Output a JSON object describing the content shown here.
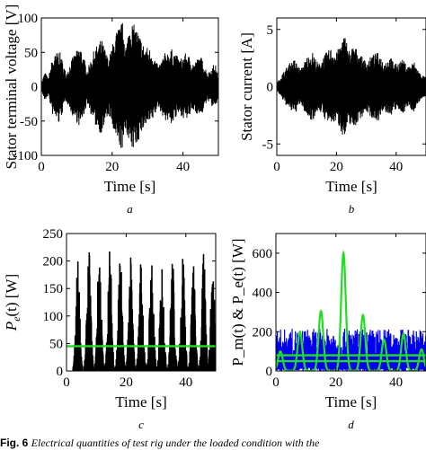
{
  "figure": {
    "caption_label": "Fig. 6",
    "caption_text": "Electrical quantities of test rig under the loaded condition with the"
  },
  "chart_data": [
    {
      "id": "a",
      "type": "line",
      "panel_label": "a",
      "xlabel": "Time [s]",
      "ylabel": "Stator terminal voltage [V]",
      "xlim": [
        0,
        50
      ],
      "ylim": [
        -100,
        100
      ],
      "xticks": [
        0,
        20,
        40
      ],
      "yticks": [
        -100,
        -50,
        0,
        50,
        100
      ],
      "series": [
        {
          "color": "#000000",
          "envelope_time": [
            0,
            1,
            2,
            3,
            5,
            7,
            9,
            11,
            13,
            15,
            17,
            19,
            21,
            23,
            24,
            25,
            27,
            29,
            31,
            33,
            35,
            37,
            39,
            41,
            43,
            45,
            47,
            49,
            50
          ],
          "envelope_amplitude": [
            5,
            22,
            12,
            40,
            55,
            20,
            45,
            60,
            25,
            55,
            70,
            40,
            80,
            95,
            60,
            98,
            85,
            60,
            55,
            30,
            50,
            55,
            40,
            50,
            35,
            45,
            20,
            35,
            15
          ]
        }
      ]
    },
    {
      "id": "b",
      "type": "line",
      "panel_label": "b",
      "xlabel": "Time [s]",
      "ylabel": "Stator current [A]",
      "xlim": [
        0,
        50
      ],
      "ylim": [
        -6,
        6
      ],
      "xticks": [
        0,
        20,
        40
      ],
      "yticks": [
        -5,
        0,
        5
      ],
      "series": [
        {
          "color": "#000000",
          "envelope_time": [
            0,
            2,
            4,
            6,
            8,
            10,
            12,
            14,
            16,
            18,
            20,
            22,
            23,
            24,
            26,
            28,
            30,
            32,
            34,
            36,
            38,
            40,
            42,
            44,
            46,
            48,
            50
          ],
          "envelope_amplitude": [
            0.3,
            1.2,
            2.0,
            2.4,
            1.5,
            2.6,
            3.0,
            2.0,
            2.8,
            3.4,
            3.0,
            4.2,
            4.6,
            3.2,
            3.6,
            2.8,
            2.2,
            2.8,
            3.0,
            2.2,
            2.6,
            2.0,
            2.4,
            1.8,
            2.2,
            1.2,
            0.8
          ]
        }
      ]
    },
    {
      "id": "c",
      "type": "line",
      "panel_label": "c",
      "xlabel": "Time [s]",
      "ylabel": "P_e(t) [W]",
      "ylabel_main": "P",
      "ylabel_sub": "e",
      "ylabel_rest": "(t) [W]",
      "xlim": [
        0,
        50
      ],
      "ylim": [
        0,
        250
      ],
      "xticks": [
        0,
        20,
        40
      ],
      "yticks": [
        0,
        50,
        100,
        150,
        200,
        250
      ],
      "series": [
        {
          "color": "#000000",
          "burst_centers": [
            3.8,
            7.5,
            11.0,
            14.5,
            18.0,
            21.5,
            25.0,
            28.5,
            32.0,
            35.5,
            39.0,
            42.5,
            46.0,
            49.0
          ],
          "burst_peaks": [
            205,
            222,
            232,
            228,
            225,
            208,
            210,
            222,
            205,
            212,
            225,
            200,
            215,
            208
          ]
        },
        {
          "color": "#22dd22",
          "mean_value": 45
        }
      ]
    },
    {
      "id": "d",
      "type": "line",
      "panel_label": "d",
      "xlabel": "Time [s]",
      "ylabel": "P_m(t) & P_e(t) [W]",
      "xlim": [
        0,
        50
      ],
      "ylim": [
        0,
        700
      ],
      "xticks": [
        0,
        20,
        40
      ],
      "yticks": [
        0,
        200,
        400,
        600
      ],
      "series": [
        {
          "color": "#0000ee",
          "band_low": 60,
          "band_high": 215
        },
        {
          "color": "#22dd22",
          "peak_times": [
            1.5,
            8.0,
            15.0,
            22.5,
            29.0,
            36.0,
            42.5,
            48.5
          ],
          "peak_values": [
            100,
            200,
            305,
            600,
            285,
            160,
            190,
            110
          ]
        },
        {
          "color": "#22dd22",
          "mean_value": 80
        },
        {
          "color": "#22dd22",
          "mean_value": 50
        }
      ]
    }
  ]
}
